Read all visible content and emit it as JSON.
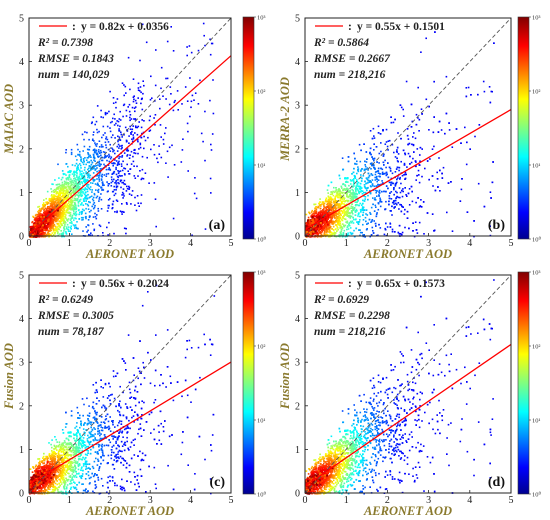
{
  "chart_data": [
    {
      "type": "scatter",
      "subtype": "density-heatmap",
      "panel_label": "(a)",
      "xlabel": "AERONET AOD",
      "ylabel": "MAIAC AOD",
      "xlim": [
        0,
        5
      ],
      "ylim": [
        0,
        5
      ],
      "xticks": [
        "0",
        "1",
        "2",
        "3",
        "4",
        "5"
      ],
      "yticks": [
        "0",
        "1",
        "2",
        "3",
        "4",
        "5"
      ],
      "fit": {
        "slope": 0.82,
        "intercept": 0.0356
      },
      "equation": "y = 0.82x + 0.0356",
      "stats": [
        "R² = 0.7398",
        "RMSE = 0.1843",
        "num = 140,029"
      ],
      "colorbar": {
        "min": "10⁰",
        "ticks": [
          "10⁰",
          "10¹",
          "10²",
          "10³"
        ]
      },
      "reference_line": "1:1",
      "grid": false
    },
    {
      "type": "scatter",
      "subtype": "density-heatmap",
      "panel_label": "(b)",
      "xlabel": "AERONET AOD",
      "ylabel": "MERRA-2 AOD",
      "xlim": [
        0,
        5
      ],
      "ylim": [
        0,
        5
      ],
      "xticks": [
        "0",
        "1",
        "2",
        "3",
        "4",
        "5"
      ],
      "yticks": [
        "0",
        "1",
        "2",
        "3",
        "4",
        "5"
      ],
      "fit": {
        "slope": 0.55,
        "intercept": 0.1501
      },
      "equation": "y = 0.55x + 0.1501",
      "stats": [
        "R² = 0.5864",
        "RMSE = 0.2667",
        "num = 218,216"
      ],
      "colorbar": {
        "min": "10⁰",
        "ticks": [
          "10⁰",
          "10¹",
          "10²",
          "10³"
        ]
      },
      "reference_line": "1:1",
      "grid": false
    },
    {
      "type": "scatter",
      "subtype": "density-heatmap",
      "panel_label": "(c)",
      "xlabel": "AERONET AOD",
      "ylabel": "Fusion AOD",
      "xlim": [
        0,
        5
      ],
      "ylim": [
        0,
        5
      ],
      "xticks": [
        "0",
        "1",
        "2",
        "3",
        "4",
        "5"
      ],
      "yticks": [
        "0",
        "1",
        "2",
        "3",
        "4",
        "5"
      ],
      "fit": {
        "slope": 0.56,
        "intercept": 0.2024
      },
      "equation": "y = 0.56x + 0.2024",
      "stats": [
        "R² = 0.6249",
        "RMSE = 0.3005",
        "num = 78,187"
      ],
      "colorbar": {
        "min": "10⁰",
        "ticks": [
          "10⁰",
          "10¹",
          "10²",
          "10³"
        ]
      },
      "reference_line": "1:1",
      "grid": false
    },
    {
      "type": "scatter",
      "subtype": "density-heatmap",
      "panel_label": "(d)",
      "xlabel": "AERONET AOD",
      "ylabel": "Fusion AOD",
      "xlim": [
        0,
        5
      ],
      "ylim": [
        0,
        5
      ],
      "xticks": [
        "0",
        "1",
        "2",
        "3",
        "4",
        "5"
      ],
      "yticks": [
        "0",
        "1",
        "2",
        "3",
        "4",
        "5"
      ],
      "fit": {
        "slope": 0.65,
        "intercept": 0.1573
      },
      "equation": "y = 0.65x + 0.1573",
      "stats": [
        "R² = 0.6929",
        "RMSE = 0.2298",
        "num = 218,216"
      ],
      "colorbar": {
        "min": "10⁰",
        "ticks": [
          "10⁰",
          "10¹",
          "10²",
          "10³"
        ]
      },
      "reference_line": "1:1",
      "grid": false
    }
  ],
  "colors": {
    "fit_line": "#ff0000",
    "reference_line": "#555555",
    "axis_label": "#8a7a2e",
    "colormap": [
      "#00008f",
      "#0000ff",
      "#0080ff",
      "#00ffff",
      "#80ff80",
      "#ffff00",
      "#ff8000",
      "#ff0000",
      "#800000"
    ]
  }
}
